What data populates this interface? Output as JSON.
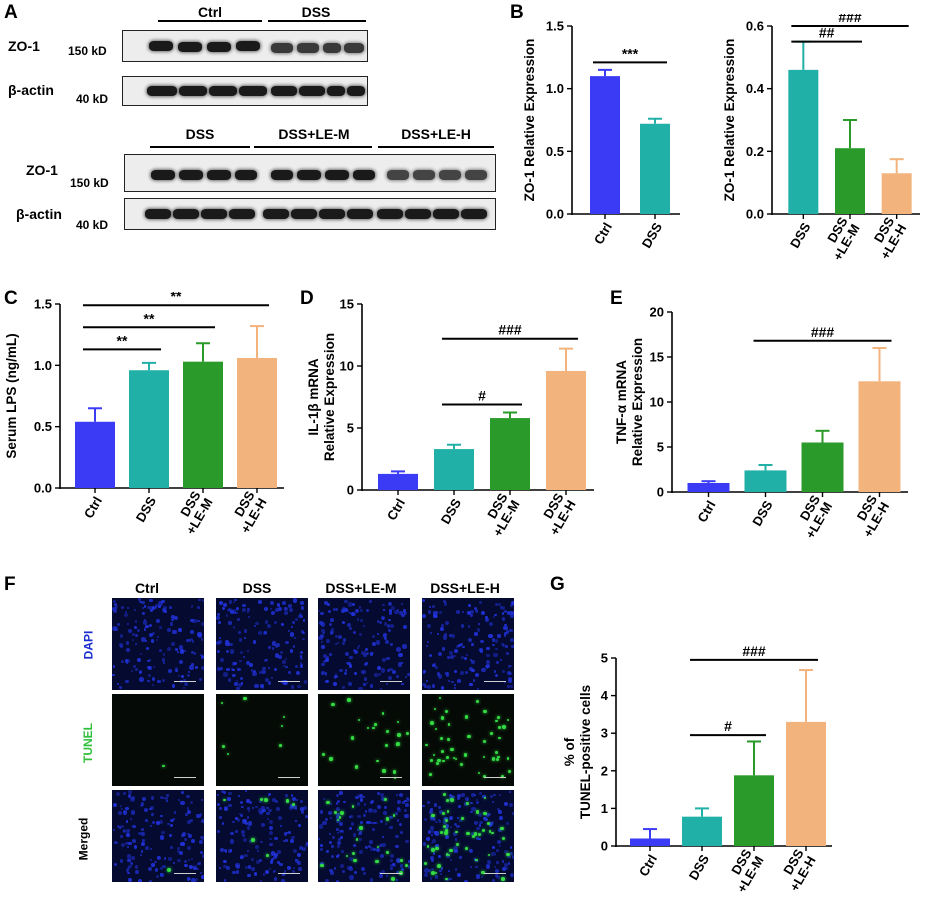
{
  "panels": {
    "a": "A",
    "b": "B",
    "c": "C",
    "d": "D",
    "e": "E",
    "f": "F",
    "g": "G"
  },
  "western_blot": {
    "zo1": "ZO-1",
    "actin": "β-actin",
    "kd150": "150 kD",
    "kd40": "40 kD",
    "top_groups": [
      "Ctrl",
      "DSS"
    ],
    "bottom_groups": [
      "DSS",
      "DSS+LE-M",
      "DSS+LE-H"
    ]
  },
  "microscopy": {
    "columns": [
      "Ctrl",
      "DSS",
      "DSS+LE-M",
      "DSS+LE-H"
    ],
    "rows": [
      "DAPI",
      "TUNEL",
      "Merged"
    ],
    "tunel_dots": [
      1,
      7,
      22,
      45
    ],
    "colors": {
      "dapi": "#2233dd",
      "tunel": "#33dd44",
      "dapi_label": "#1a2ccf",
      "tunel_label": "#2fbf3a"
    }
  },
  "colors": {
    "Ctrl": "#3b3bf5",
    "DSS": "#20b0a8",
    "DSS+LE-M": "#2a9a2a",
    "DSS+LE-H": "#f3b37c"
  },
  "chart_data": [
    {
      "id": "B1",
      "type": "bar",
      "categories": [
        "Ctrl",
        "DSS"
      ],
      "cat_labels": [
        [
          "Ctrl"
        ],
        [
          "DSS"
        ]
      ],
      "values": [
        1.1,
        0.72
      ],
      "errors": [
        0.05,
        0.04
      ],
      "ylabel": [
        "ZO-1 Relative Expression"
      ],
      "ylim": [
        0,
        1.5
      ],
      "ticks": [
        0.0,
        0.5,
        1.0,
        1.5
      ],
      "tick_labels": [
        "0.0",
        "0.5",
        "1.0",
        "1.5"
      ],
      "sig": [
        {
          "from": 0,
          "to": 1,
          "label": "***",
          "y": 1.21
        }
      ]
    },
    {
      "id": "B2",
      "type": "bar",
      "categories": [
        "DSS",
        "DSS+LE-M",
        "DSS+LE-H"
      ],
      "cat_labels": [
        [
          "DSS"
        ],
        [
          "DSS",
          "+LE-M"
        ],
        [
          "DSS",
          "+LE-H"
        ]
      ],
      "values": [
        0.46,
        0.21,
        0.13
      ],
      "errors": [
        0.09,
        0.09,
        0.045
      ],
      "ylabel": [
        "ZO-1 Relative Expression"
      ],
      "ylim": [
        0,
        0.6
      ],
      "ticks": [
        0.0,
        0.2,
        0.4,
        0.6
      ],
      "tick_labels": [
        "0.0",
        "0.2",
        "0.4",
        "0.6"
      ],
      "sig": [
        {
          "from": 0,
          "to": 1,
          "label": "##",
          "y": 0.55
        },
        {
          "from": 0,
          "to": 2,
          "label": "###",
          "y": 0.6
        }
      ]
    },
    {
      "id": "C",
      "type": "bar",
      "categories": [
        "Ctrl",
        "DSS",
        "DSS+LE-M",
        "DSS+LE-H"
      ],
      "cat_labels": [
        [
          "Ctrl"
        ],
        [
          "DSS"
        ],
        [
          "DSS",
          "+LE-M"
        ],
        [
          "DSS",
          "+LE-H"
        ]
      ],
      "values": [
        0.54,
        0.96,
        1.03,
        1.06
      ],
      "errors": [
        0.11,
        0.06,
        0.15,
        0.26
      ],
      "ylabel": [
        "Serum LPS (ng/mL)"
      ],
      "ylim": [
        0,
        1.5
      ],
      "ticks": [
        0.0,
        0.5,
        1.0,
        1.5
      ],
      "tick_labels": [
        "0.0",
        "0.5",
        "1.0",
        "1.5"
      ],
      "sig": [
        {
          "from": 0,
          "to": 1,
          "label": "**",
          "y": 1.13
        },
        {
          "from": 0,
          "to": 2,
          "label": "**",
          "y": 1.31
        },
        {
          "from": 0,
          "to": 3,
          "label": "**",
          "y": 1.49
        }
      ]
    },
    {
      "id": "D",
      "type": "bar",
      "categories": [
        "Ctrl",
        "DSS",
        "DSS+LE-M",
        "DSS+LE-H"
      ],
      "cat_labels": [
        [
          "Ctrl"
        ],
        [
          "DSS"
        ],
        [
          "DSS",
          "+LE-M"
        ],
        [
          "DSS",
          "+LE-H"
        ]
      ],
      "values": [
        1.3,
        3.3,
        5.8,
        9.6
      ],
      "errors": [
        0.2,
        0.35,
        0.45,
        1.8
      ],
      "ylabel": [
        "IL-1β mRNA",
        "Relative Expression"
      ],
      "ylim": [
        0,
        15
      ],
      "ticks": [
        0,
        5,
        10,
        15
      ],
      "tick_labels": [
        "0",
        "5",
        "10",
        "15"
      ],
      "sig": [
        {
          "from": 1,
          "to": 2,
          "label": "#",
          "y": 6.9
        },
        {
          "from": 1,
          "to": 3,
          "label": "###",
          "y": 12.2
        }
      ]
    },
    {
      "id": "E",
      "type": "bar",
      "categories": [
        "Ctrl",
        "DSS",
        "DSS+LE-M",
        "DSS+LE-H"
      ],
      "cat_labels": [
        [
          "Ctrl"
        ],
        [
          "DSS"
        ],
        [
          "DSS",
          "+LE-M"
        ],
        [
          "DSS",
          "+LE-H"
        ]
      ],
      "values": [
        1.0,
        2.4,
        5.5,
        12.3
      ],
      "errors": [
        0.2,
        0.6,
        1.3,
        3.7
      ],
      "ylabel": [
        "TNF-α mRNA",
        "Relative Expression"
      ],
      "ylim": [
        0,
        20
      ],
      "ticks": [
        0,
        5,
        10,
        15,
        20
      ],
      "tick_labels": [
        "0",
        "5",
        "10",
        "15",
        "20"
      ],
      "sig": [
        {
          "from": 1,
          "to": 3,
          "label": "###",
          "y": 16.8
        }
      ]
    },
    {
      "id": "G",
      "type": "bar",
      "categories": [
        "Ctrl",
        "DSS",
        "DSS+LE-M",
        "DSS+LE-H"
      ],
      "cat_labels": [
        [
          "Ctrl"
        ],
        [
          "DSS"
        ],
        [
          "DSS",
          "+LE-M"
        ],
        [
          "DSS",
          "+LE-H"
        ]
      ],
      "values": [
        0.2,
        0.78,
        1.88,
        3.3
      ],
      "errors": [
        0.25,
        0.22,
        0.9,
        1.38
      ],
      "ylabel": [
        "% of",
        "TUNEL-positive cells"
      ],
      "ylim": [
        0,
        5
      ],
      "ticks": [
        0,
        1,
        2,
        3,
        4,
        5
      ],
      "tick_labels": [
        "0",
        "1",
        "2",
        "3",
        "4",
        "5"
      ],
      "sig": [
        {
          "from": 1,
          "to": 2,
          "label": "#",
          "y": 2.95
        },
        {
          "from": 1,
          "to": 3,
          "label": "###",
          "y": 4.95
        }
      ]
    }
  ]
}
